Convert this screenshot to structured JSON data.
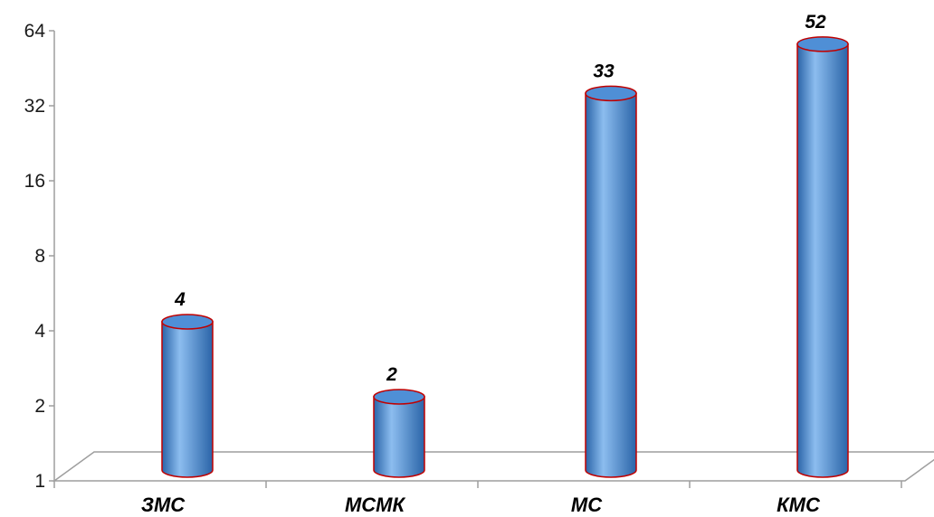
{
  "chart_data": {
    "type": "bar",
    "subtype": "3d-cylinder",
    "y_scale": "log2",
    "ylim": [
      1,
      64
    ],
    "y_ticks": [
      "1",
      "2",
      "4",
      "8",
      "16",
      "32",
      "64"
    ],
    "categories": [
      "ЗМС",
      "МСМК",
      "МС",
      "КМС"
    ],
    "values": [
      4,
      2,
      33,
      52
    ],
    "data_labels": [
      "4",
      "2",
      "33",
      "52"
    ],
    "title": "",
    "xlabel": "",
    "ylabel": "",
    "grid": false,
    "legend": "none",
    "colors": {
      "bar_fill": "#4f8fd6",
      "bar_light": "#8cbdef",
      "bar_dark": "#2a64a8",
      "bar_outline": "#c00000",
      "floor_line": "#9e9e9e"
    }
  }
}
